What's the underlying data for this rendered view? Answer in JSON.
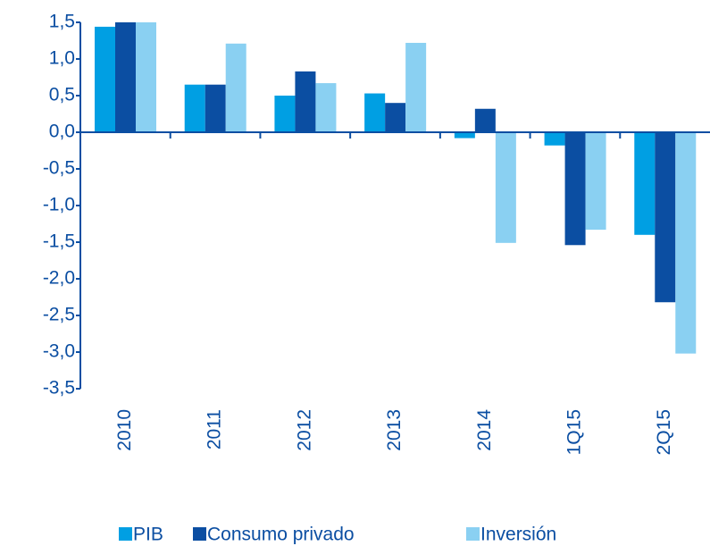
{
  "chart_data": {
    "type": "bar",
    "categories": [
      "2010",
      "2011",
      "2012",
      "2013",
      "2014",
      "1Q15",
      "2Q15"
    ],
    "series": [
      {
        "name": "PIB",
        "color": "#009fe3",
        "values": [
          1.44,
          0.65,
          0.5,
          0.53,
          -0.08,
          -0.18,
          -1.4
        ]
      },
      {
        "name": "Consumo privado",
        "color": "#0b4ea2",
        "values": [
          1.5,
          0.65,
          0.83,
          0.4,
          0.32,
          -1.54,
          -2.32
        ]
      },
      {
        "name": "Inversión",
        "color": "#8ad0f2",
        "values": [
          1.5,
          1.21,
          0.67,
          1.22,
          -1.51,
          -1.33,
          -3.02
        ]
      }
    ],
    "ylim": [
      -3.5,
      1.5
    ],
    "yticks": [
      {
        "value": 1.5,
        "label": "1,5"
      },
      {
        "value": 1.0,
        "label": "1,0"
      },
      {
        "value": 0.5,
        "label": "0,5"
      },
      {
        "value": 0,
        "label": "0,0"
      },
      {
        "value": -0.5,
        "label": "-0,5"
      },
      {
        "value": -1.0,
        "label": "-1,0"
      },
      {
        "value": -1.5,
        "label": "-1,5"
      },
      {
        "value": -2.0,
        "label": "-2,0"
      },
      {
        "value": -2.5,
        "label": "-2,5"
      },
      {
        "value": -3.0,
        "label": "-3,0"
      },
      {
        "value": -3.5,
        "label": "-3,5"
      }
    ],
    "legend": "bottom"
  }
}
